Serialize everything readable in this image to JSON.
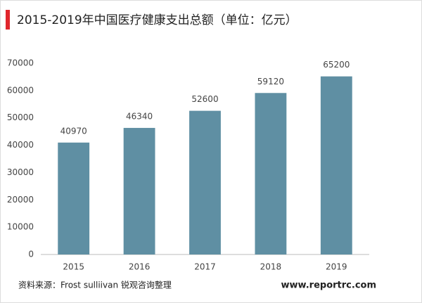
{
  "chart_data": {
    "type": "bar",
    "title": "2015-2019年中国医疗健康支出总额（单位：亿元）",
    "categories": [
      "2015",
      "2016",
      "2017",
      "2018",
      "2019"
    ],
    "values": [
      40970,
      46340,
      52600,
      59120,
      65200
    ],
    "color": "#5f8fa3",
    "ylim": [
      0,
      70000
    ],
    "yticks": [
      0,
      10000,
      20000,
      30000,
      40000,
      50000,
      60000,
      70000
    ],
    "grid": false,
    "source": "资料来源：Frost sulliivan 锐观咨询整理",
    "website": "www.reportrc.com"
  }
}
